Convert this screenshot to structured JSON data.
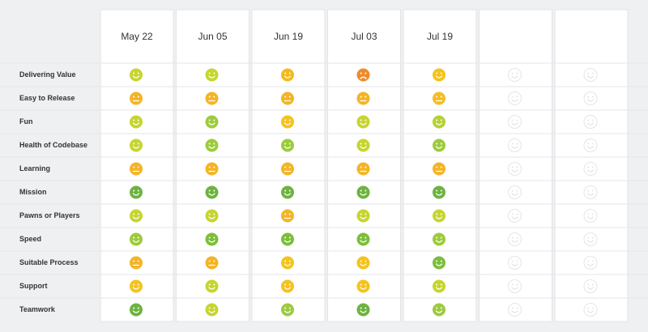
{
  "header": {
    "columns": [
      "May 22",
      "Jun 05",
      "Jun 19",
      "Jul 03",
      "Jul 19",
      null,
      null
    ]
  },
  "rows": [
    {
      "label": "Delivering Value",
      "faces": [
        "smile",
        "smile",
        "smile",
        "frown",
        "smile"
      ],
      "colors": [
        "#c6d530",
        "#c6d530",
        "#f4b91c",
        "#ef8a2c",
        "#f4c31c"
      ]
    },
    {
      "label": "Easy to Release",
      "faces": [
        "flat",
        "flat",
        "flat",
        "flat",
        "flat"
      ],
      "colors": [
        "#f4b425",
        "#f4b425",
        "#f4b425",
        "#f4b425",
        "#f4bd22"
      ]
    },
    {
      "label": "Fun",
      "faces": [
        "smile",
        "smile",
        "smile",
        "smile",
        "smile"
      ],
      "colors": [
        "#c6d530",
        "#9ccb3e",
        "#f4c31c",
        "#c6d530",
        "#b4d235"
      ]
    },
    {
      "label": "Health of Codebase",
      "faces": [
        "smile",
        "smile",
        "smile",
        "smile",
        "smile"
      ],
      "colors": [
        "#c6d530",
        "#9ccb3e",
        "#9ccb3e",
        "#c6d530",
        "#9ccb3e"
      ]
    },
    {
      "label": "Learning",
      "faces": [
        "flat",
        "flat",
        "flat",
        "flat",
        "flat"
      ],
      "colors": [
        "#f4b425",
        "#f4b425",
        "#f4b425",
        "#f4b425",
        "#f4b425"
      ]
    },
    {
      "label": "Mission",
      "faces": [
        "smile",
        "smile",
        "smile",
        "smile",
        "smile"
      ],
      "colors": [
        "#6db33f",
        "#6db33f",
        "#6db33f",
        "#6db33f",
        "#6db33f"
      ]
    },
    {
      "label": "Pawns or Players",
      "faces": [
        "smile",
        "smile",
        "flat",
        "smile",
        "smile"
      ],
      "colors": [
        "#c6d530",
        "#c6d530",
        "#f4b425",
        "#c6d530",
        "#c6d530"
      ]
    },
    {
      "label": "Speed",
      "faces": [
        "smile",
        "smile",
        "smile",
        "smile",
        "smile"
      ],
      "colors": [
        "#9ccb3e",
        "#7dbd3c",
        "#7dbd3c",
        "#7dbd3c",
        "#9ccb3e"
      ]
    },
    {
      "label": "Suitable Process",
      "faces": [
        "flat",
        "flat",
        "smile",
        "smile",
        "smile"
      ],
      "colors": [
        "#f4b425",
        "#f4b425",
        "#f4c31c",
        "#f4c31c",
        "#7dbd3c"
      ]
    },
    {
      "label": "Support",
      "faces": [
        "smile",
        "smile",
        "smile",
        "smile",
        "smile"
      ],
      "colors": [
        "#f4c31c",
        "#c6d530",
        "#f4c31c",
        "#f4c31c",
        "#c6d530"
      ]
    },
    {
      "label": "Teamwork",
      "faces": [
        "smile",
        "smile",
        "smile",
        "smile",
        "smile"
      ],
      "colors": [
        "#6db33f",
        "#c6d530",
        "#9ccb3e",
        "#6db33f",
        "#9ccb3e"
      ]
    }
  ]
}
